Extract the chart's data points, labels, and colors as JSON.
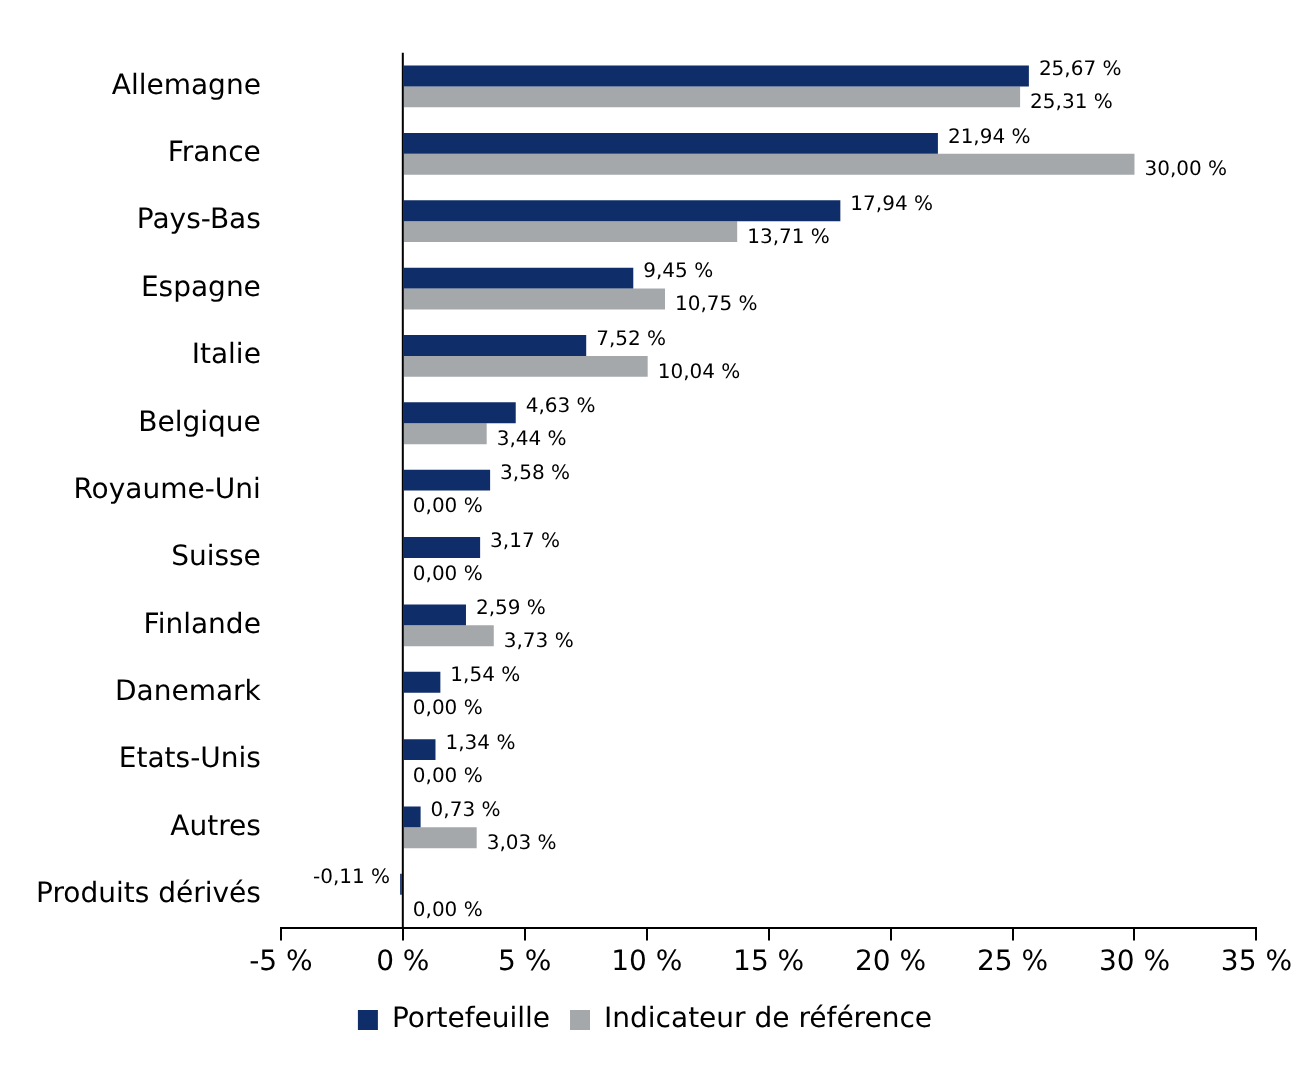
{
  "chart_data": {
    "type": "bar",
    "orientation": "horizontal",
    "categories": [
      "Allemagne",
      "France",
      "Pays-Bas",
      "Espagne",
      "Italie",
      "Belgique",
      "Royaume-Uni",
      "Suisse",
      "Finlande",
      "Danemark",
      "Etats-Unis",
      "Autres",
      "Produits dérivés"
    ],
    "series": [
      {
        "name": "Portefeuille",
        "color": "#0f2d69",
        "values": [
          25.67,
          21.94,
          17.94,
          9.45,
          7.52,
          4.63,
          3.58,
          3.17,
          2.59,
          1.54,
          1.34,
          0.73,
          -0.11
        ],
        "value_labels": [
          "25,67 %",
          "21,94 %",
          "17,94 %",
          "9,45 %",
          "7,52 %",
          "4,63 %",
          "3,58 %",
          "3,17 %",
          "2,59 %",
          "1,54 %",
          "1,34 %",
          "0,73 %",
          "-0,11 %"
        ]
      },
      {
        "name": "Indicateur de référence",
        "color": "#a5a8ab",
        "values": [
          25.31,
          30.0,
          13.71,
          10.75,
          10.04,
          3.44,
          0,
          0,
          3.73,
          0,
          0,
          3.03,
          0
        ],
        "value_labels": [
          "25,31 %",
          "30,00 %",
          "13,71 %",
          "10,75 %",
          "10,04 %",
          "3,44 %",
          "0,00 %",
          "0,00 %",
          "3,73 %",
          "0,00 %",
          "0,00 %",
          "3,03 %",
          "0,00 %"
        ]
      }
    ],
    "xlim": [
      -5,
      35
    ],
    "xticks": [
      {
        "value": -5,
        "label": "-5 %"
      },
      {
        "value": 0,
        "label": "0 %"
      },
      {
        "value": 5,
        "label": "5 %"
      },
      {
        "value": 10,
        "label": "10 %"
      },
      {
        "value": 15,
        "label": "15 %"
      },
      {
        "value": 20,
        "label": "20 %"
      },
      {
        "value": 25,
        "label": "25 %"
      },
      {
        "value": 30,
        "label": "30 %"
      },
      {
        "value": 35,
        "label": "35 %"
      }
    ],
    "ref_lines": [
      {
        "axis": "x",
        "value": 0,
        "color": "#000000"
      }
    ],
    "grid": false,
    "legend": "bottom"
  }
}
